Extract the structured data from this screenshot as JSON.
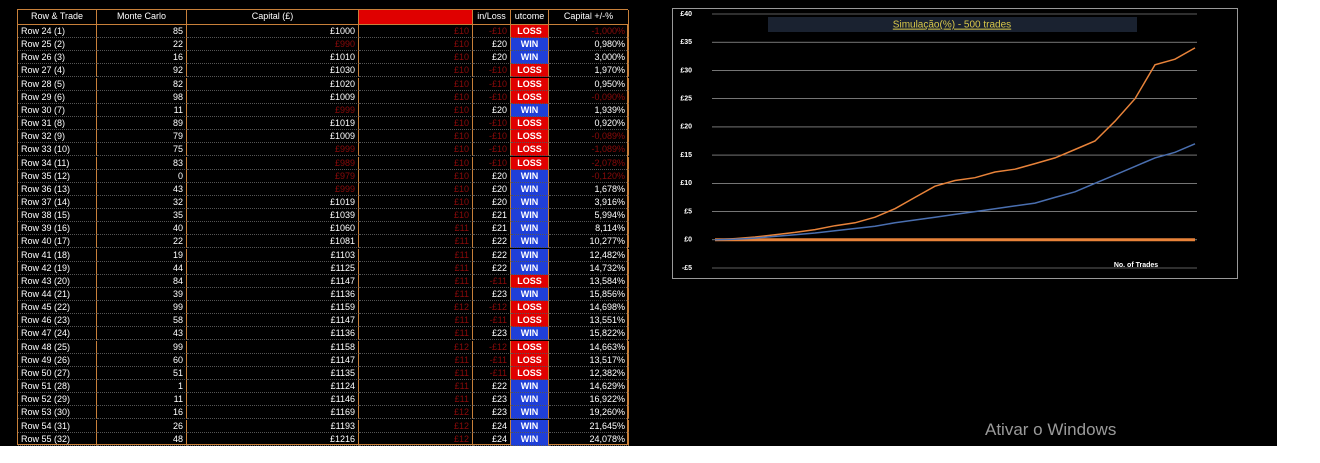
{
  "table": {
    "headers": [
      "Row & Trade",
      "Monte Carlo",
      "Capital (£)",
      "",
      "in/Loss",
      "utcome",
      "Capital +/-%"
    ],
    "header_colors": [
      "#000000",
      "#000000",
      "#000000",
      "#e00000",
      "#000000",
      "#000000",
      "#000000"
    ],
    "outcome_colors": {
      "WIN": "#1f3fd8",
      "LOSS": "#e00000"
    },
    "text_color": "#ffffff",
    "dim_color": "#8a0a0a",
    "rows": [
      {
        "cells": [
          "Row 24 (1)",
          "85",
          "£1000",
          "£10",
          "-£10",
          "LOSS",
          "-1,000%"
        ],
        "dim": [
          3,
          4,
          6
        ]
      },
      {
        "cells": [
          "Row 25 (2)",
          "22",
          "£990",
          "£10",
          "£20",
          "WIN",
          "0,980%"
        ],
        "dim": [
          2,
          3
        ]
      },
      {
        "cells": [
          "Row 26 (3)",
          "16",
          "£1010",
          "£10",
          "£20",
          "WIN",
          "3,000%"
        ],
        "dim": [
          3
        ]
      },
      {
        "cells": [
          "Row 27 (4)",
          "92",
          "£1030",
          "£10",
          "-£10",
          "LOSS",
          "1,970%"
        ],
        "dim": [
          3,
          4
        ]
      },
      {
        "cells": [
          "Row 28 (5)",
          "82",
          "£1020",
          "£10",
          "-£10",
          "LOSS",
          "0,950%"
        ],
        "dim": [
          3,
          4
        ]
      },
      {
        "cells": [
          "Row 29 (6)",
          "98",
          "£1009",
          "£10",
          "-£10",
          "LOSS",
          "-0,090%"
        ],
        "dim": [
          3,
          4,
          6
        ]
      },
      {
        "cells": [
          "Row 30 (7)",
          "11",
          "£999",
          "£10",
          "£20",
          "WIN",
          "1,939%"
        ],
        "dim": [
          2,
          3
        ]
      },
      {
        "cells": [
          "Row 31 (8)",
          "89",
          "£1019",
          "£10",
          "-£10",
          "LOSS",
          "0,920%"
        ],
        "dim": [
          3,
          4
        ]
      },
      {
        "cells": [
          "Row 32 (9)",
          "79",
          "£1009",
          "£10",
          "-£10",
          "LOSS",
          "-0,089%"
        ],
        "dim": [
          3,
          4,
          6
        ]
      },
      {
        "cells": [
          "Row 33 (10)",
          "75",
          "£999",
          "£10",
          "-£10",
          "LOSS",
          "-1,089%"
        ],
        "dim": [
          2,
          3,
          4,
          6
        ]
      },
      {
        "cells": [
          "Row 34 (11)",
          "83",
          "£989",
          "£10",
          "-£10",
          "LOSS",
          "-2,078%"
        ],
        "dim": [
          2,
          3,
          4,
          6
        ]
      },
      {
        "cells": [
          "Row 35 (12)",
          "0",
          "£979",
          "£10",
          "£20",
          "WIN",
          "-0,120%"
        ],
        "dim": [
          2,
          3,
          6
        ]
      },
      {
        "cells": [
          "Row 36 (13)",
          "43",
          "£999",
          "£10",
          "£20",
          "WIN",
          "1,678%"
        ],
        "dim": [
          2,
          3
        ]
      },
      {
        "cells": [
          "Row 37 (14)",
          "32",
          "£1019",
          "£10",
          "£20",
          "WIN",
          "3,916%"
        ],
        "dim": [
          3
        ]
      },
      {
        "cells": [
          "Row 38 (15)",
          "35",
          "£1039",
          "£10",
          "£21",
          "WIN",
          "5,994%"
        ],
        "dim": [
          3
        ]
      },
      {
        "cells": [
          "Row 39 (16)",
          "40",
          "£1060",
          "£11",
          "£21",
          "WIN",
          "8,114%"
        ],
        "dim": [
          3
        ]
      },
      {
        "cells": [
          "Row 40 (17)",
          "22",
          "£1081",
          "£11",
          "£22",
          "WIN",
          "10,277%"
        ],
        "dim": [
          3
        ]
      },
      {
        "cells": [
          "Row 41 (18)",
          "19",
          "£1103",
          "£11",
          "£22",
          "WIN",
          "12,482%"
        ],
        "dim": [
          3
        ]
      },
      {
        "cells": [
          "Row 42 (19)",
          "44",
          "£1125",
          "£11",
          "£22",
          "WIN",
          "14,732%"
        ],
        "dim": [
          3
        ]
      },
      {
        "cells": [
          "Row 43 (20)",
          "84",
          "£1147",
          "£11",
          "-£11",
          "LOSS",
          "13,584%"
        ],
        "dim": [
          3,
          4
        ]
      },
      {
        "cells": [
          "Row 44 (21)",
          "39",
          "£1136",
          "£11",
          "£23",
          "WIN",
          "15,856%"
        ],
        "dim": [
          3
        ]
      },
      {
        "cells": [
          "Row 45 (22)",
          "99",
          "£1159",
          "£12",
          "-£12",
          "LOSS",
          "14,698%"
        ],
        "dim": [
          3,
          4
        ]
      },
      {
        "cells": [
          "Row 46 (23)",
          "58",
          "£1147",
          "£11",
          "-£11",
          "LOSS",
          "13,551%"
        ],
        "dim": [
          3,
          4
        ]
      },
      {
        "cells": [
          "Row 47 (24)",
          "43",
          "£1136",
          "£11",
          "£23",
          "WIN",
          "15,822%"
        ],
        "dim": [
          3
        ]
      },
      {
        "cells": [
          "Row 48 (25)",
          "99",
          "£1158",
          "£12",
          "-£12",
          "LOSS",
          "14,663%"
        ],
        "dim": [
          3,
          4
        ]
      },
      {
        "cells": [
          "Row 49 (26)",
          "60",
          "£1147",
          "£11",
          "-£11",
          "LOSS",
          "13,517%"
        ],
        "dim": [
          3,
          4
        ]
      },
      {
        "cells": [
          "Row 50 (27)",
          "51",
          "£1135",
          "£11",
          "-£11",
          "LOSS",
          "12,382%"
        ],
        "dim": [
          3,
          4
        ]
      },
      {
        "cells": [
          "Row 51 (28)",
          "1",
          "£1124",
          "£11",
          "£22",
          "WIN",
          "14,629%"
        ],
        "dim": [
          3
        ]
      },
      {
        "cells": [
          "Row 52 (29)",
          "11",
          "£1146",
          "£11",
          "£23",
          "WIN",
          "16,922%"
        ],
        "dim": [
          3
        ]
      },
      {
        "cells": [
          "Row 53 (30)",
          "16",
          "£1169",
          "£12",
          "£23",
          "WIN",
          "19,260%"
        ],
        "dim": [
          3
        ]
      },
      {
        "cells": [
          "Row 54 (31)",
          "26",
          "£1193",
          "£12",
          "£24",
          "WIN",
          "21,645%"
        ],
        "dim": [
          3
        ]
      },
      {
        "cells": [
          "Row 55 (32)",
          "48",
          "£1216",
          "£12",
          "£24",
          "WIN",
          "24,078%"
        ],
        "dim": [
          3
        ]
      }
    ]
  },
  "chart_data": {
    "type": "line",
    "title": "Simulação(%)  -  500 trades",
    "xlabel": "No. of Trades",
    "ylim": [
      -5,
      40
    ],
    "yticks": [
      {
        "value": -5,
        "label": "-£5"
      },
      {
        "value": 0,
        "label": "£0"
      },
      {
        "value": 5,
        "label": "£5"
      },
      {
        "value": 10,
        "label": "£10"
      },
      {
        "value": 15,
        "label": "£15"
      },
      {
        "value": 20,
        "label": "£20"
      },
      {
        "value": 25,
        "label": "£25"
      },
      {
        "value": 30,
        "label": "£30"
      },
      {
        "value": 35,
        "label": "£35"
      },
      {
        "value": 40,
        "label": "£40"
      }
    ],
    "grid": true,
    "series": [
      {
        "color": "#e8833a",
        "width": 3,
        "values": [
          0,
          0,
          0,
          0,
          0,
          0,
          0,
          0,
          0,
          0,
          0,
          0,
          0,
          0,
          0,
          0,
          0,
          0,
          0,
          0,
          0,
          0,
          0,
          0,
          0
        ]
      },
      {
        "color": "#e8833a",
        "width": 1.5,
        "values": [
          0,
          0.2,
          0.5,
          0.9,
          1.3,
          1.8,
          2.5,
          3,
          4,
          5.5,
          7.5,
          9.5,
          10.5,
          11,
          12,
          12.5,
          13.5,
          14.5,
          16,
          17.5,
          21,
          25,
          31,
          32,
          34
        ]
      },
      {
        "color": "#4a6fb0",
        "width": 1.5,
        "values": [
          0,
          0.1,
          0.3,
          0.6,
          0.9,
          1.2,
          1.6,
          2,
          2.4,
          3,
          3.5,
          4,
          4.5,
          5,
          5.5,
          6,
          6.5,
          7.5,
          8.5,
          10,
          11.5,
          13,
          14.5,
          15.5,
          17
        ]
      }
    ]
  },
  "watermark": "Ativar o Windows"
}
